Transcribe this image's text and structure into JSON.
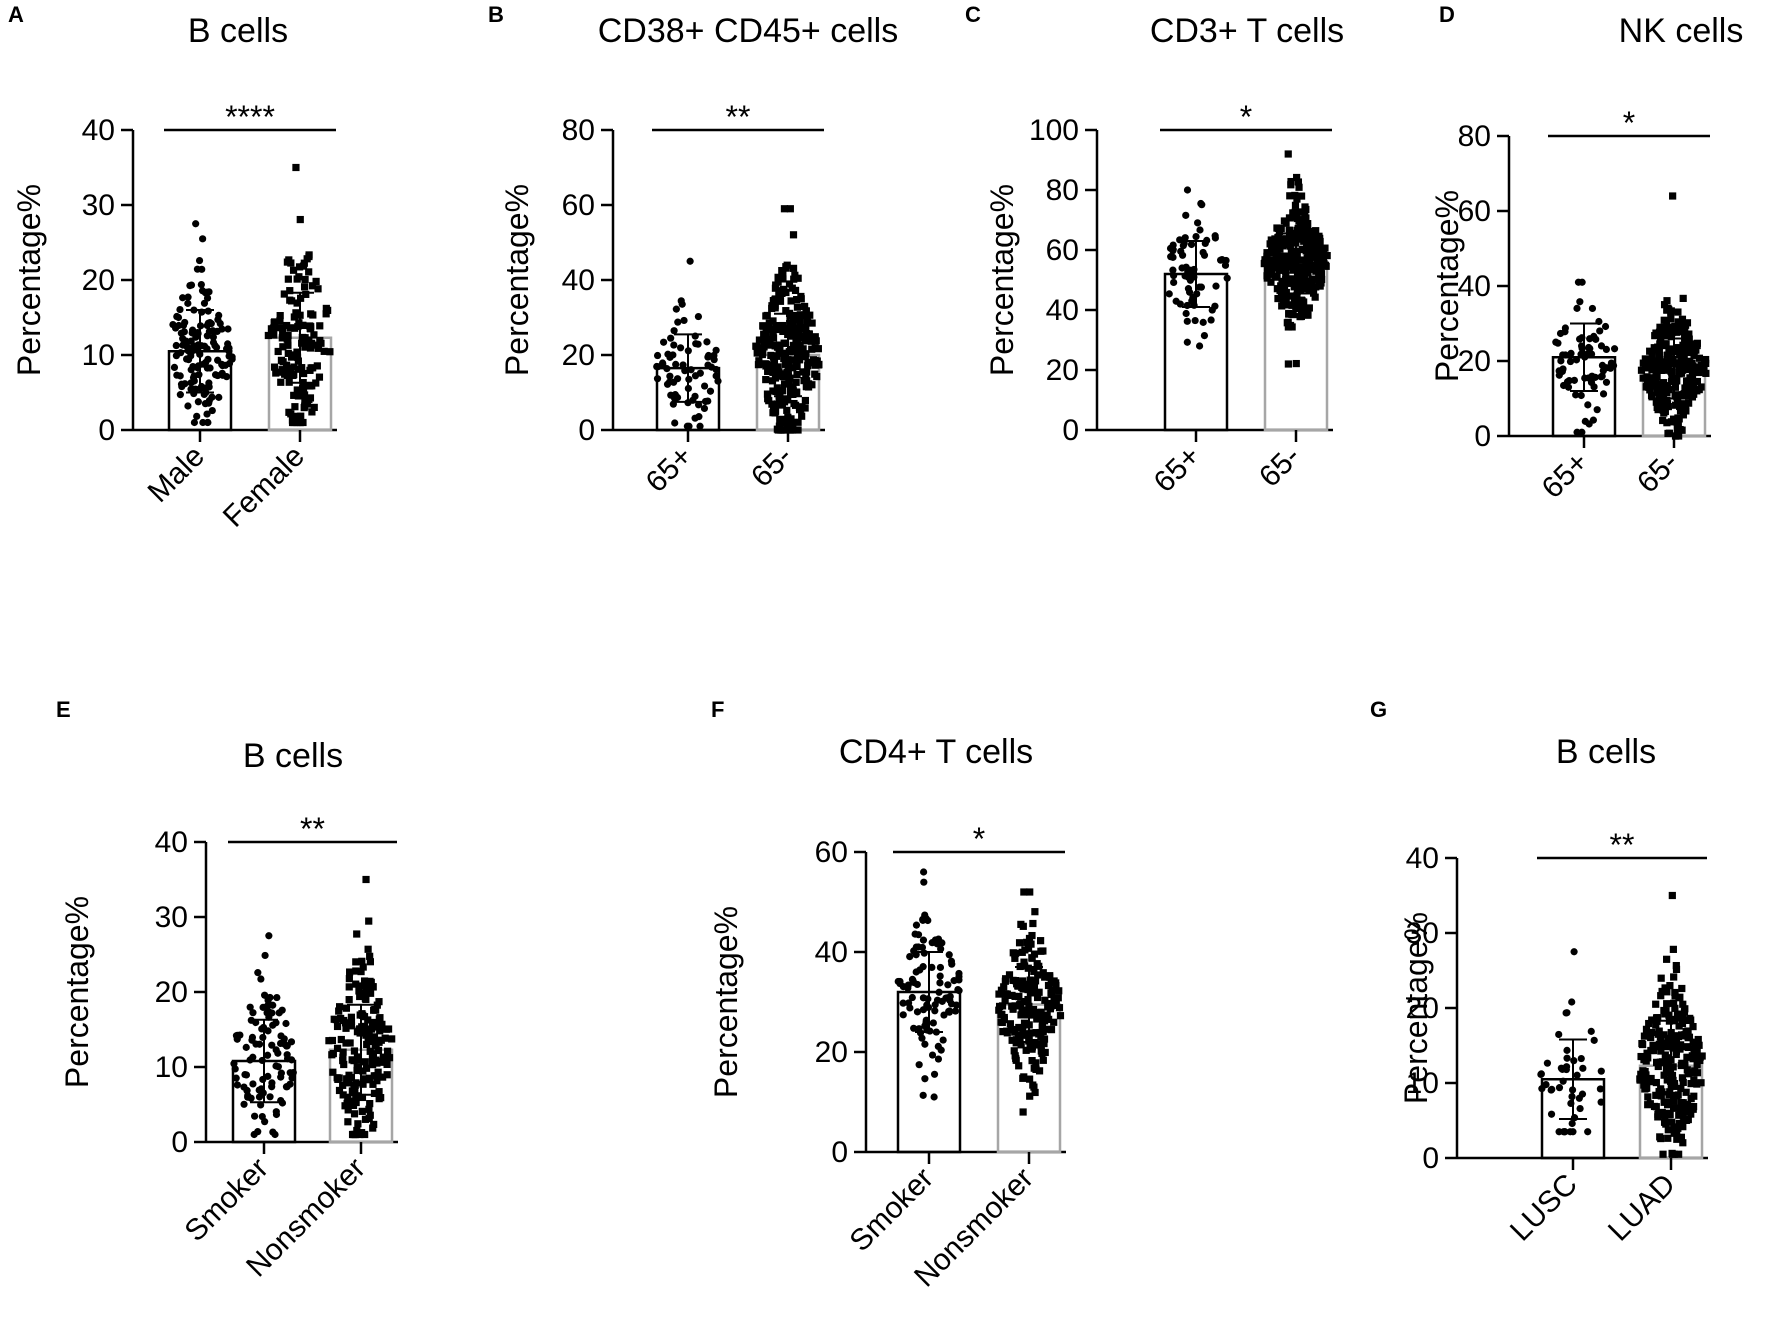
{
  "chart_data": [
    {
      "type": "bar",
      "panel": "A",
      "title": "B cells",
      "ylabel": "Percentage%",
      "xlabel": "",
      "ylim": [
        0,
        40
      ],
      "yticks": [
        0,
        10,
        20,
        30,
        40
      ],
      "categories": [
        "Male",
        "Female"
      ],
      "values": [
        10.5,
        12.3
      ],
      "sd": [
        5.5,
        6.0
      ],
      "n_points": [
        140,
        150
      ],
      "point_range": [
        [
          1,
          27.5
        ],
        [
          1,
          35
        ]
      ],
      "significance": "****"
    },
    {
      "type": "bar",
      "panel": "B",
      "title": "CD38+ CD45+ cells",
      "ylabel": "Percentage%",
      "xlabel": "",
      "ylim": [
        0,
        80
      ],
      "yticks": [
        0,
        20,
        40,
        60,
        80
      ],
      "categories": [
        "65+",
        "65-"
      ],
      "values": [
        16.5,
        20
      ],
      "sd": [
        9,
        11
      ],
      "n_points": [
        70,
        280
      ],
      "point_range": [
        [
          1,
          45
        ],
        [
          0,
          59
        ]
      ],
      "significance": "**"
    },
    {
      "type": "bar",
      "panel": "C",
      "title": "CD3+ T cells",
      "ylabel": "Percentage%",
      "xlabel": "",
      "ylim": [
        0,
        100
      ],
      "yticks": [
        0,
        20,
        40,
        60,
        80,
        100
      ],
      "categories": [
        "65+",
        "65-"
      ],
      "values": [
        52,
        55.5
      ],
      "sd": [
        11,
        10
      ],
      "n_points": [
        70,
        280
      ],
      "point_range": [
        [
          28,
          80
        ],
        [
          22,
          92
        ]
      ],
      "significance": "*"
    },
    {
      "type": "bar",
      "panel": "D",
      "title": "NK cells",
      "ylabel": "Percentage%",
      "xlabel": "",
      "ylim": [
        0,
        80
      ],
      "yticks": [
        0,
        20,
        40,
        60,
        80
      ],
      "categories": [
        "65+",
        "65-"
      ],
      "values": [
        21,
        18
      ],
      "sd": [
        9,
        8
      ],
      "n_points": [
        70,
        280
      ],
      "point_range": [
        [
          1,
          41
        ],
        [
          0,
          64
        ]
      ],
      "significance": "*"
    },
    {
      "type": "bar",
      "panel": "E",
      "title": "B cells",
      "ylabel": "Percentage%",
      "xlabel": "",
      "ylim": [
        0,
        40
      ],
      "yticks": [
        0,
        10,
        20,
        30,
        40
      ],
      "categories": [
        "Smoker",
        "Nonsmoker"
      ],
      "values": [
        10.8,
        12.3
      ],
      "sd": [
        5.5,
        6.0
      ],
      "n_points": [
        100,
        190
      ],
      "point_range": [
        [
          1,
          27.5
        ],
        [
          1,
          35
        ]
      ],
      "significance": "**"
    },
    {
      "type": "bar",
      "panel": "F",
      "title": "CD4+ T cells",
      "ylabel": "Percentage%",
      "xlabel": "",
      "ylim": [
        0,
        60
      ],
      "yticks": [
        0,
        20,
        40,
        60
      ],
      "categories": [
        "Smoker",
        "Nonsmoker"
      ],
      "values": [
        32,
        29.5
      ],
      "sd": [
        8,
        7.5
      ],
      "n_points": [
        100,
        190
      ],
      "point_range": [
        [
          11,
          56
        ],
        [
          8,
          52
        ]
      ],
      "significance": "*"
    },
    {
      "type": "bar",
      "panel": "G",
      "title": "B cells",
      "ylabel": "Percentage%",
      "xlabel": "",
      "ylim": [
        0,
        40
      ],
      "yticks": [
        0,
        10,
        20,
        30,
        40
      ],
      "categories": [
        "LUSC",
        "LUAD"
      ],
      "values": [
        10.5,
        12.3
      ],
      "sd": [
        5.3,
        6.0
      ],
      "n_points": [
        45,
        250
      ],
      "point_range": [
        [
          3.5,
          27.5
        ],
        [
          0.5,
          35
        ]
      ],
      "significance": "**"
    }
  ],
  "colors": {
    "axis": "#000000",
    "bar1": "#000000",
    "bar2": "#a6a6a6",
    "points": "#000000"
  }
}
